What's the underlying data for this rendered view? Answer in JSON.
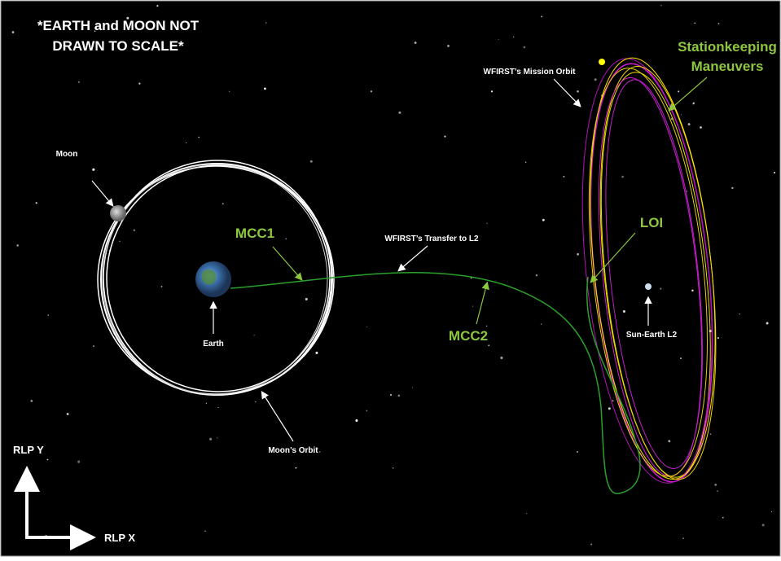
{
  "title": [
    "*EARTH and MOON NOT",
    "DRAWN TO SCALE*"
  ],
  "labels": {
    "moon": "Moon",
    "earth": "Earth",
    "moon_orbit": "Moon’s Orbit",
    "transfer": "WFIRST’s Transfer to L2",
    "mission_orbit": "WFIRST’s Mission Orbit",
    "stationkeeping": [
      "Stationkeeping",
      "Maneuvers"
    ],
    "loi": "LOI",
    "mcc1": "MCC1",
    "mcc2": "MCC2",
    "l2": "Sun-Earth L2"
  },
  "axes": {
    "y": "RLP Y",
    "x": "RLP X"
  }
}
